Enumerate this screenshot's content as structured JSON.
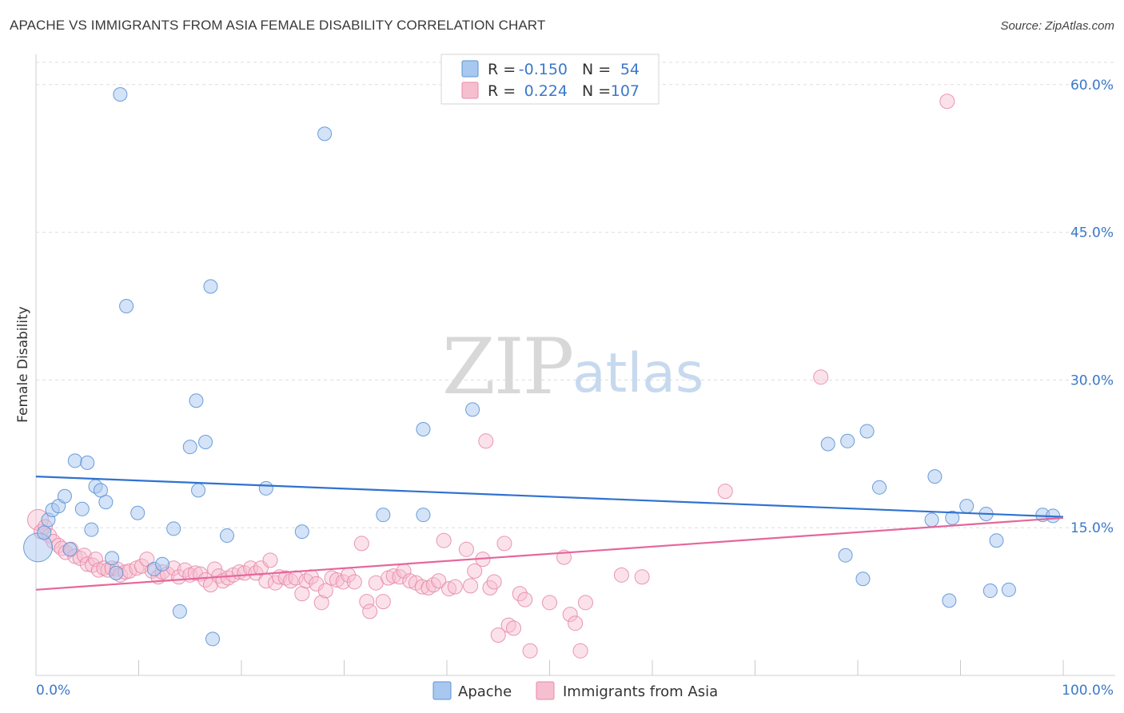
{
  "header": {
    "title": "APACHE VS IMMIGRANTS FROM ASIA FEMALE DISABILITY CORRELATION CHART",
    "source": "Source: ZipAtlas.com"
  },
  "watermark": {
    "zip": "ZIP",
    "atlas": "atlas"
  },
  "stats_legend": [
    {
      "r_label": "R =",
      "r_value": "-0.150",
      "n_label": "N =",
      "n_value": "54",
      "color": "#a9c8ef"
    },
    {
      "r_label": "R =",
      "r_value": "0.224",
      "n_label": "N =",
      "n_value": "107",
      "color": "#f4b6c8"
    }
  ],
  "colors": {
    "apache_fill": "#a9c8ef",
    "apache_stroke": "#5b93d6",
    "apache_line": "#2f72d0",
    "asia_fill": "#f6bfd0",
    "asia_stroke": "#e88aa8",
    "asia_line": "#e5679a",
    "tick_label": "#3b78c9",
    "grid": "#dddddd"
  },
  "chart_data": {
    "type": "scatter",
    "title": "APACHE VS IMMIGRANTS FROM ASIA FEMALE DISABILITY CORRELATION CHART",
    "xlabel": "",
    "ylabel": "Female Disability",
    "xlim": [
      0,
      100
    ],
    "ylim": [
      0,
      62.5
    ],
    "x_tick_labels": [
      "0.0%",
      "100.0%"
    ],
    "y_ticks": [
      15,
      30,
      45,
      60
    ],
    "y_tick_labels": [
      "15.0%",
      "30.0%",
      "45.0%",
      "60.0%"
    ],
    "grid": true,
    "legend_position": "bottom",
    "series": [
      {
        "name": "Apache",
        "r": -0.15,
        "n": 54,
        "trend": {
          "x0": 0,
          "y0": 20.2,
          "x1": 100,
          "y1": 16.1
        },
        "points": [
          [
            0.2,
            13.0
          ],
          [
            0.8,
            14.5
          ],
          [
            1.2,
            15.8
          ],
          [
            1.6,
            16.8
          ],
          [
            2.2,
            17.2
          ],
          [
            2.8,
            18.2
          ],
          [
            3.3,
            12.8
          ],
          [
            3.8,
            21.8
          ],
          [
            4.5,
            16.9
          ],
          [
            5.0,
            21.6
          ],
          [
            5.4,
            14.8
          ],
          [
            5.8,
            19.2
          ],
          [
            6.3,
            18.8
          ],
          [
            6.8,
            17.6
          ],
          [
            7.4,
            11.9
          ],
          [
            7.8,
            10.4
          ],
          [
            8.2,
            59.0
          ],
          [
            8.8,
            37.5
          ],
          [
            9.9,
            16.5
          ],
          [
            11.5,
            10.8
          ],
          [
            12.3,
            11.3
          ],
          [
            13.4,
            14.9
          ],
          [
            14.0,
            6.5
          ],
          [
            15.0,
            23.2
          ],
          [
            15.6,
            27.9
          ],
          [
            15.8,
            18.8
          ],
          [
            16.5,
            23.7
          ],
          [
            17.0,
            39.5
          ],
          [
            17.2,
            3.7
          ],
          [
            18.6,
            14.2
          ],
          [
            22.4,
            19.0
          ],
          [
            25.9,
            14.6
          ],
          [
            28.1,
            55.0
          ],
          [
            33.8,
            16.3
          ],
          [
            37.7,
            25.0
          ],
          [
            37.7,
            16.3
          ],
          [
            42.5,
            27.0
          ],
          [
            77.1,
            23.5
          ],
          [
            78.8,
            12.2
          ],
          [
            79.0,
            23.8
          ],
          [
            80.5,
            9.8
          ],
          [
            80.9,
            24.8
          ],
          [
            82.1,
            19.1
          ],
          [
            87.2,
            15.8
          ],
          [
            87.5,
            20.2
          ],
          [
            88.9,
            7.6
          ],
          [
            89.2,
            16.0
          ],
          [
            90.6,
            17.2
          ],
          [
            92.5,
            16.4
          ],
          [
            92.9,
            8.6
          ],
          [
            93.5,
            13.7
          ],
          [
            94.7,
            8.7
          ],
          [
            98.0,
            16.3
          ],
          [
            99.0,
            16.2
          ]
        ]
      },
      {
        "name": "Immigrants from Asia",
        "r": 0.224,
        "n": 107,
        "trend": {
          "x0": 0,
          "y0": 8.7,
          "x1": 100,
          "y1": 16.0
        },
        "points": [
          [
            0.2,
            15.8
          ],
          [
            0.5,
            14.6
          ],
          [
            0.9,
            15.1
          ],
          [
            1.3,
            14.2
          ],
          [
            1.7,
            13.6
          ],
          [
            2.2,
            13.2
          ],
          [
            2.5,
            12.9
          ],
          [
            2.9,
            12.5
          ],
          [
            3.4,
            12.8
          ],
          [
            3.8,
            12.1
          ],
          [
            4.3,
            11.9
          ],
          [
            4.7,
            12.2
          ],
          [
            5.0,
            11.3
          ],
          [
            5.5,
            11.2
          ],
          [
            5.8,
            11.8
          ],
          [
            6.1,
            10.7
          ],
          [
            6.6,
            10.9
          ],
          [
            7.0,
            10.7
          ],
          [
            7.4,
            10.9
          ],
          [
            7.9,
            10.8
          ],
          [
            8.2,
            10.2
          ],
          [
            8.7,
            10.5
          ],
          [
            9.1,
            10.6
          ],
          [
            9.8,
            10.9
          ],
          [
            10.3,
            11.1
          ],
          [
            10.8,
            11.8
          ],
          [
            11.3,
            10.6
          ],
          [
            11.9,
            10.0
          ],
          [
            12.3,
            10.5
          ],
          [
            12.8,
            10.3
          ],
          [
            13.4,
            10.9
          ],
          [
            13.9,
            10.0
          ],
          [
            14.5,
            10.7
          ],
          [
            15.0,
            10.2
          ],
          [
            15.5,
            10.4
          ],
          [
            16.0,
            10.3
          ],
          [
            16.5,
            9.7
          ],
          [
            17.0,
            9.2
          ],
          [
            17.4,
            10.8
          ],
          [
            17.8,
            10.1
          ],
          [
            18.2,
            9.6
          ],
          [
            18.7,
            9.9
          ],
          [
            19.2,
            10.2
          ],
          [
            19.8,
            10.5
          ],
          [
            20.3,
            10.4
          ],
          [
            20.9,
            10.9
          ],
          [
            21.4,
            10.4
          ],
          [
            21.9,
            10.9
          ],
          [
            22.4,
            9.6
          ],
          [
            22.8,
            11.7
          ],
          [
            23.3,
            9.4
          ],
          [
            23.7,
            10.0
          ],
          [
            24.3,
            9.9
          ],
          [
            24.8,
            9.6
          ],
          [
            25.3,
            9.9
          ],
          [
            25.9,
            8.3
          ],
          [
            26.3,
            9.6
          ],
          [
            26.8,
            10.0
          ],
          [
            27.3,
            9.3
          ],
          [
            27.8,
            7.4
          ],
          [
            28.2,
            8.6
          ],
          [
            28.8,
            9.9
          ],
          [
            29.3,
            9.7
          ],
          [
            29.9,
            9.5
          ],
          [
            30.4,
            10.2
          ],
          [
            31.0,
            9.5
          ],
          [
            31.7,
            13.4
          ],
          [
            32.2,
            7.5
          ],
          [
            32.5,
            6.5
          ],
          [
            33.1,
            9.4
          ],
          [
            33.8,
            7.5
          ],
          [
            34.3,
            9.9
          ],
          [
            34.8,
            10.1
          ],
          [
            35.4,
            10.0
          ],
          [
            35.8,
            10.6
          ],
          [
            36.4,
            9.6
          ],
          [
            37.0,
            9.4
          ],
          [
            37.6,
            9.0
          ],
          [
            38.2,
            8.9
          ],
          [
            38.7,
            9.2
          ],
          [
            39.2,
            9.6
          ],
          [
            39.7,
            13.7
          ],
          [
            40.2,
            8.8
          ],
          [
            40.8,
            9.0
          ],
          [
            41.9,
            12.8
          ],
          [
            42.3,
            9.1
          ],
          [
            42.7,
            10.6
          ],
          [
            43.5,
            11.8
          ],
          [
            43.8,
            23.8
          ],
          [
            44.2,
            8.9
          ],
          [
            44.6,
            9.5
          ],
          [
            45.0,
            4.1
          ],
          [
            45.6,
            13.4
          ],
          [
            46.0,
            5.1
          ],
          [
            46.5,
            4.8
          ],
          [
            47.1,
            8.3
          ],
          [
            47.6,
            7.7
          ],
          [
            48.1,
            2.5
          ],
          [
            50.0,
            7.4
          ],
          [
            51.4,
            12.0
          ],
          [
            52.0,
            6.2
          ],
          [
            52.5,
            5.3
          ],
          [
            53.0,
            2.5
          ],
          [
            53.5,
            7.4
          ],
          [
            57.0,
            10.2
          ],
          [
            59.0,
            10.0
          ],
          [
            67.1,
            18.7
          ],
          [
            76.4,
            30.3
          ],
          [
            88.7,
            58.3
          ]
        ]
      }
    ]
  },
  "bottom_legend": [
    {
      "label": "Apache"
    },
    {
      "label": "Immigrants from Asia"
    }
  ]
}
